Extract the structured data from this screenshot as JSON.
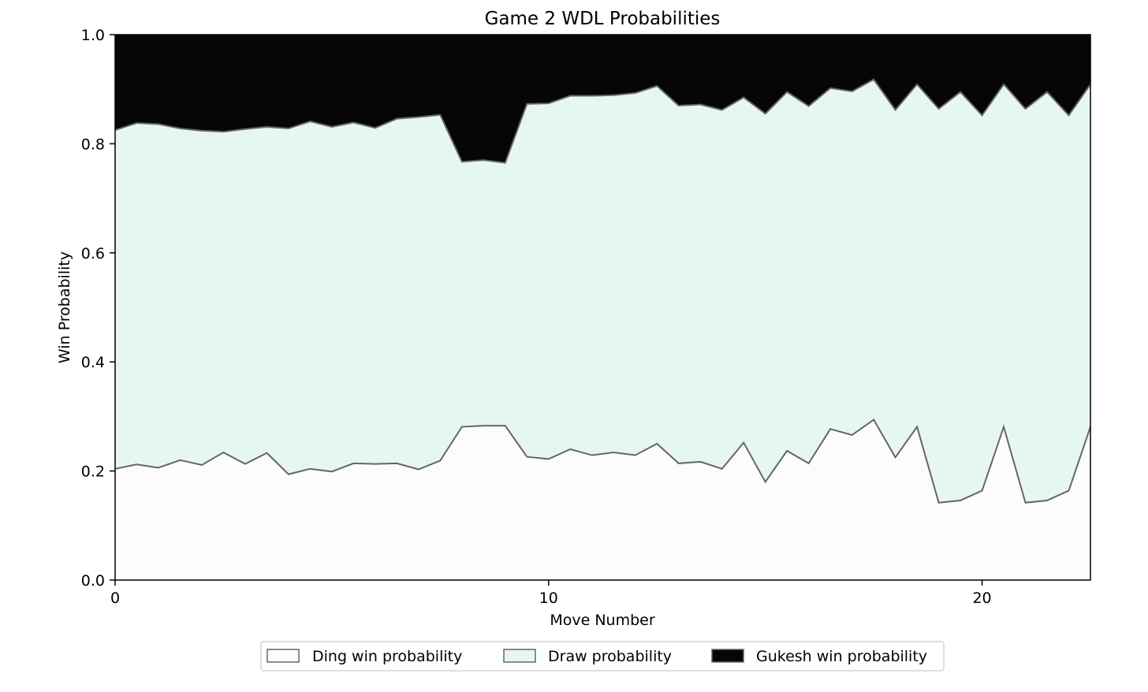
{
  "colors": {
    "ding": "#fcfcfc",
    "draw": "#e6f6f0",
    "gukesh": "#060606",
    "edge": "#666666",
    "axis": "#000000"
  },
  "chart_data": {
    "type": "area",
    "title": "Game 2 WDL Probabilities",
    "xlabel": "Move Number",
    "ylabel": "Win Probability",
    "xlim": [
      0,
      22.5
    ],
    "ylim": [
      0,
      1.0
    ],
    "x_ticks": [
      0,
      10,
      20
    ],
    "y_ticks": [
      "0.0",
      "0.2",
      "0.4",
      "0.6",
      "0.8",
      "1.0"
    ],
    "y_tick_values": [
      0,
      0.2,
      0.4,
      0.6,
      0.8,
      1.0
    ],
    "legend_position": "bottom-center",
    "grid": false,
    "x": [
      0,
      0.5,
      1,
      1.5,
      2,
      2.5,
      3,
      3.5,
      4,
      4.5,
      5,
      5.5,
      6,
      6.5,
      7,
      7.5,
      8,
      8.5,
      9,
      9.5,
      10,
      10.5,
      11,
      11.5,
      12,
      12.5,
      13,
      13.5,
      14,
      14.5,
      15,
      15.5,
      16,
      16.5,
      17,
      17.5,
      18,
      18.5,
      19,
      19.5,
      20,
      20.5,
      21,
      21.5,
      22,
      22.5
    ],
    "series": [
      {
        "name": "Ding win probability",
        "values": [
          0.204,
          0.212,
          0.206,
          0.22,
          0.211,
          0.234,
          0.213,
          0.233,
          0.194,
          0.204,
          0.199,
          0.214,
          0.213,
          0.214,
          0.203,
          0.219,
          0.281,
          0.283,
          0.283,
          0.226,
          0.222,
          0.24,
          0.229,
          0.234,
          0.229,
          0.25,
          0.214,
          0.217,
          0.204,
          0.252,
          0.18,
          0.237,
          0.214,
          0.277,
          0.266,
          0.294,
          0.225,
          0.281,
          0.142,
          0.146,
          0.164,
          0.281,
          0.142,
          0.146,
          0.164,
          0.281
        ]
      },
      {
        "name": "Draw probability",
        "values": [
          0.621,
          0.626,
          0.63,
          0.608,
          0.613,
          0.588,
          0.614,
          0.598,
          0.634,
          0.637,
          0.632,
          0.625,
          0.616,
          0.632,
          0.646,
          0.634,
          0.486,
          0.487,
          0.482,
          0.647,
          0.652,
          0.648,
          0.659,
          0.655,
          0.664,
          0.656,
          0.656,
          0.655,
          0.658,
          0.633,
          0.675,
          0.658,
          0.655,
          0.625,
          0.63,
          0.624,
          0.637,
          0.628,
          0.722,
          0.749,
          0.688,
          0.628,
          0.722,
          0.749,
          0.688,
          0.628
        ]
      },
      {
        "name": "Gukesh win probability",
        "values": [
          0.175,
          0.162,
          0.164,
          0.172,
          0.176,
          0.178,
          0.173,
          0.169,
          0.172,
          0.159,
          0.169,
          0.161,
          0.171,
          0.154,
          0.151,
          0.147,
          0.233,
          0.23,
          0.235,
          0.127,
          0.126,
          0.112,
          0.112,
          0.111,
          0.107,
          0.094,
          0.13,
          0.128,
          0.138,
          0.115,
          0.145,
          0.105,
          0.131,
          0.098,
          0.104,
          0.082,
          0.138,
          0.091,
          0.136,
          0.105,
          0.148,
          0.091,
          0.136,
          0.105,
          0.148,
          0.091
        ]
      }
    ]
  }
}
